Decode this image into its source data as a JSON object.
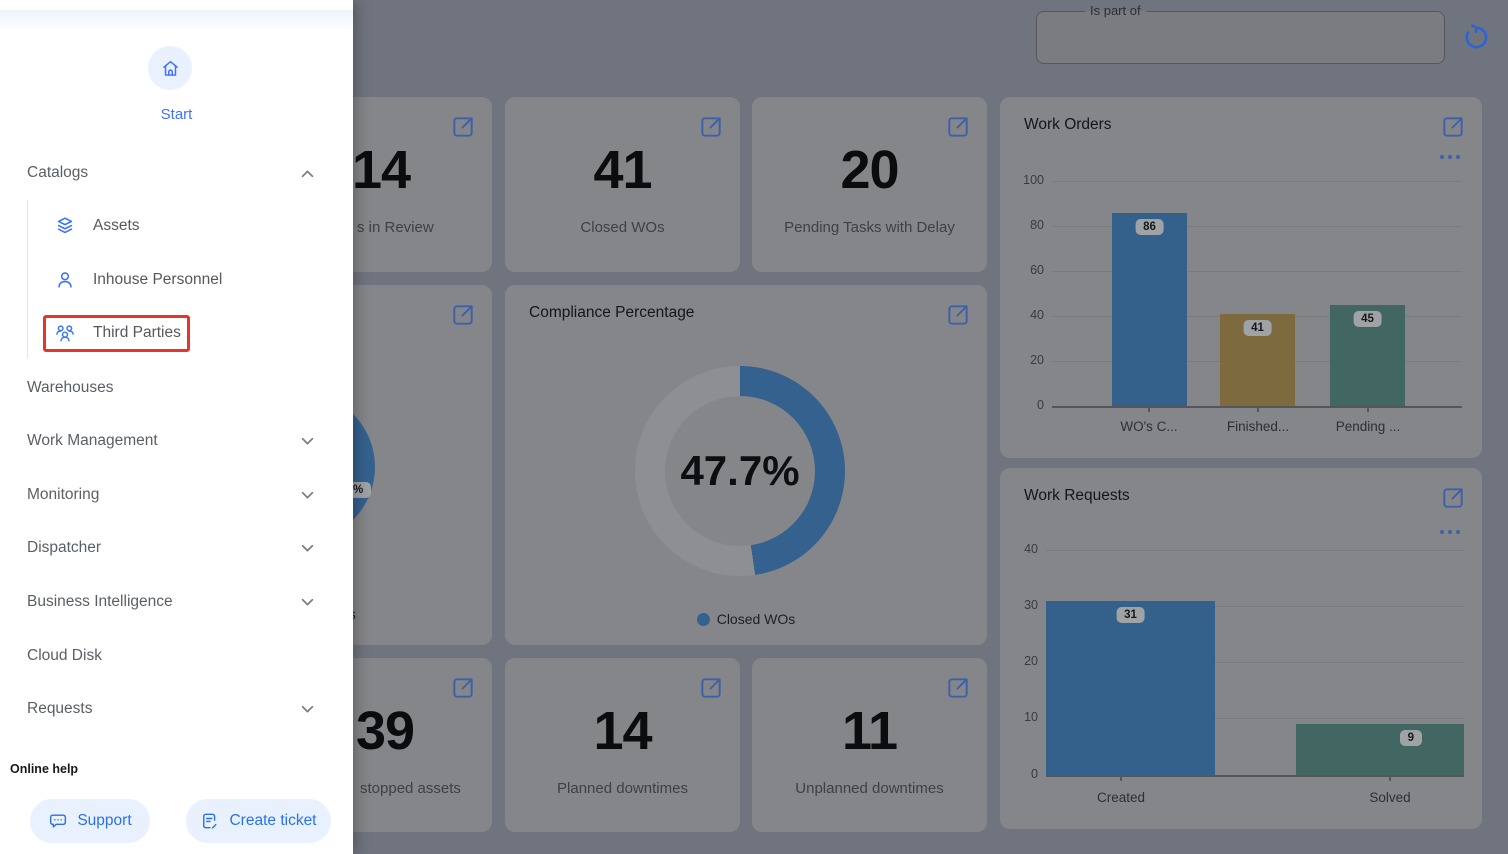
{
  "sidebar": {
    "start_label": "Start",
    "items": [
      {
        "label": "Catalogs"
      },
      {
        "label": "Assets"
      },
      {
        "label": "Inhouse Personnel"
      },
      {
        "label": "Third Parties"
      },
      {
        "label": "Warehouses"
      },
      {
        "label": "Work Management"
      },
      {
        "label": "Monitoring"
      },
      {
        "label": "Dispatcher"
      },
      {
        "label": "Business Intelligence"
      },
      {
        "label": "Cloud Disk"
      },
      {
        "label": "Requests"
      }
    ],
    "online_help": "Online help",
    "support_label": "Support",
    "create_ticket_label": "Create ticket"
  },
  "topbar": {
    "filter_label": "Is part of"
  },
  "kpis": [
    {
      "value": "14",
      "label": "s in Review"
    },
    {
      "value": "41",
      "label": "Closed WOs"
    },
    {
      "value": "20",
      "label": "Pending Tasks with Delay"
    },
    {
      "value": "39",
      "label": "stopped assets"
    },
    {
      "value": "14",
      "label": "Planned downtimes"
    },
    {
      "value": "11",
      "label": "Unplanned downtimes"
    }
  ],
  "chart_data": [
    {
      "type": "bar",
      "title": "Work Orders",
      "categories": [
        "WO's C...",
        "Finished...",
        "Pending ..."
      ],
      "values": [
        86,
        41,
        45
      ],
      "colors": [
        "#34608C",
        "#7D6A3E",
        "#426661"
      ],
      "ylim": [
        0,
        100
      ],
      "yticks": [
        0,
        20,
        40,
        60,
        80,
        100
      ],
      "grid": true,
      "legend": "none"
    },
    {
      "type": "donut",
      "title": "Compliance Percentage",
      "value": 47.7,
      "center_label": "47.7%",
      "legend": [
        "Closed WOs"
      ],
      "color": "#35618E",
      "track_color": "#8E8F93"
    },
    {
      "type": "bar",
      "title": "Work Requests",
      "categories": [
        "Created",
        "Solved"
      ],
      "values": [
        31,
        9
      ],
      "colors": [
        "#34608C",
        "#426661"
      ],
      "ylim": [
        0,
        40
      ],
      "yticks": [
        0,
        10,
        20,
        30,
        40
      ],
      "grid": true,
      "legend": "none"
    },
    {
      "type": "pie",
      "title": "",
      "note": "partially hidden behind sidebar",
      "visible_value_label": "%",
      "visible_legend_fragment": "s",
      "color": "#35618E"
    }
  ],
  "colors": {
    "page_bg_dimmed": "#70747E",
    "card_bg_dimmed": "#85868A",
    "accent_blue": "#3E73F8",
    "dimmed_icon_blue": "#3D61A8",
    "highlight_red": "#E8352B",
    "refresh_blue": "#2C63D6"
  }
}
